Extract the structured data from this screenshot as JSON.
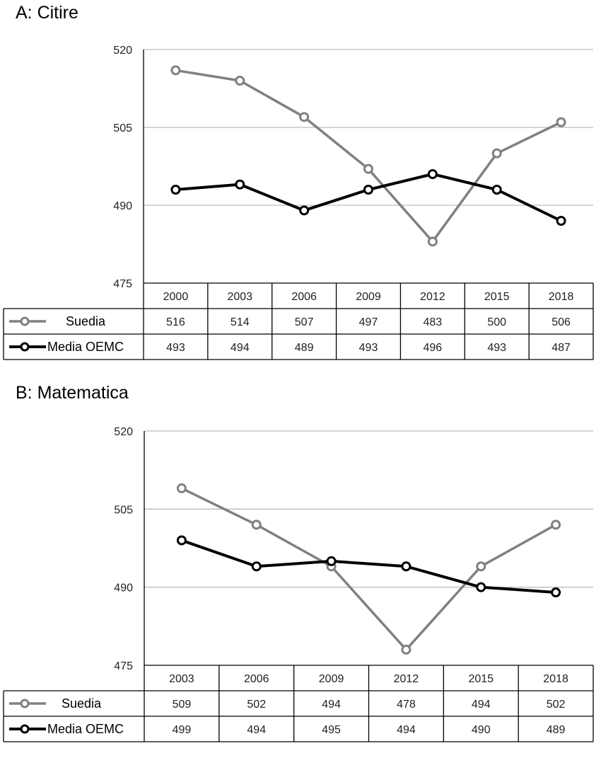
{
  "chart_data": [
    {
      "type": "line",
      "title": "A: Citire",
      "categories": [
        "2000",
        "2003",
        "2006",
        "2009",
        "2012",
        "2015",
        "2018"
      ],
      "series": [
        {
          "name": "Suedia",
          "values": [
            516,
            514,
            507,
            497,
            483,
            500,
            506
          ],
          "color": "#808080"
        },
        {
          "name": "Media OEMC",
          "values": [
            493,
            494,
            489,
            493,
            496,
            493,
            487
          ],
          "color": "#000000"
        }
      ],
      "yticks": [
        475,
        490,
        505,
        520
      ],
      "ylim": [
        475,
        520
      ],
      "grid": true,
      "legend": "data-table-left"
    },
    {
      "type": "line",
      "title": "B: Matematica",
      "categories": [
        "2003",
        "2006",
        "2009",
        "2012",
        "2015",
        "2018"
      ],
      "series": [
        {
          "name": "Suedia",
          "values": [
            509,
            502,
            494,
            478,
            494,
            502
          ],
          "color": "#808080"
        },
        {
          "name": "Media OEMC",
          "values": [
            499,
            494,
            495,
            494,
            490,
            489
          ],
          "color": "#000000"
        }
      ],
      "yticks": [
        475,
        490,
        505,
        520
      ],
      "ylim": [
        475,
        520
      ],
      "grid": true,
      "legend": "data-table-left"
    }
  ]
}
